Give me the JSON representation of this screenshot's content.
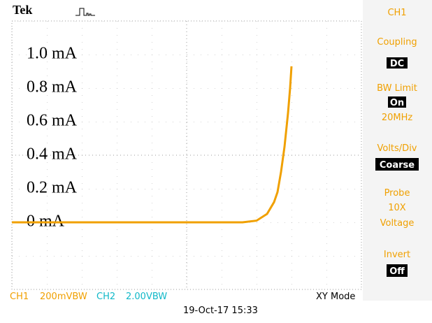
{
  "chart_data": {
    "type": "line",
    "x": [
      0,
      6.6,
      7.0,
      7.3,
      7.5,
      7.6,
      7.7,
      7.8,
      7.9,
      7.96,
      8.0
    ],
    "series": [
      {
        "color": "#f0a000",
        "values": [
          0,
          0,
          0.01,
          0.05,
          0.12,
          0.18,
          0.3,
          0.45,
          0.65,
          0.8,
          0.93
        ]
      }
    ],
    "xlim": [
      0,
      10
    ],
    "ylim": [
      -0.4,
      1.2
    ],
    "yticks": [
      {
        "value": 0,
        "label": "0 mA"
      },
      {
        "value": 0.2,
        "label": "0.2 mA"
      },
      {
        "value": 0.4,
        "label": "0.4 mA"
      },
      {
        "value": 0.6,
        "label": "0.6 mA"
      },
      {
        "value": 0.8,
        "label": "0.8 mA"
      },
      {
        "value": 1.0,
        "label": "1.0 mA"
      }
    ]
  },
  "header": {
    "brand": "Tek"
  },
  "menu": {
    "channel": "CH1",
    "coupling": "Coupling",
    "coupling_value": "DC",
    "bw_limit": "BW Limit",
    "bw_value": "On",
    "bw_freq": "20MHz",
    "volts_div": "Volts/Div",
    "volts_value": "Coarse",
    "probe": "Probe",
    "probe_value": "10X",
    "probe_type": "Voltage",
    "invert": "Invert",
    "invert_value": "Off"
  },
  "status": {
    "ch1": "CH1",
    "ch1_scale": "200mVBW",
    "ch2": "CH2",
    "ch2_scale": "2.00VBW",
    "mode": "XY Mode",
    "datetime": "19-Oct-17 15:33"
  }
}
